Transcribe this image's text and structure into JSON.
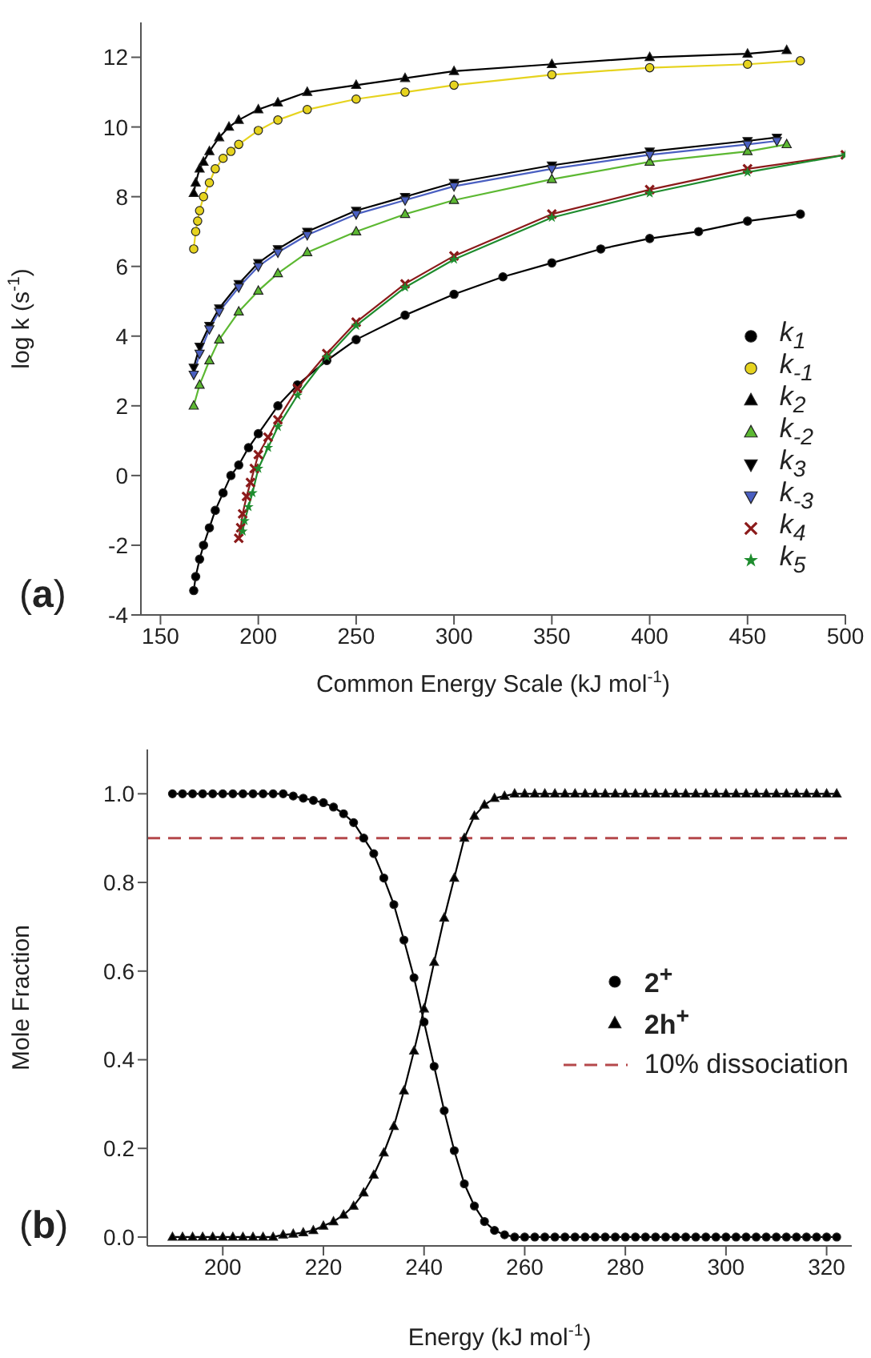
{
  "chart_data": [
    {
      "type": "line",
      "xlabel": "Common Energy Scale (kJ mol$^{-1}$)",
      "ylabel": "log k (s$^{-1}$)",
      "annotations": [
        "(a)"
      ],
      "xlim": [
        140,
        500
      ],
      "xticks": [
        150,
        200,
        250,
        300,
        350,
        400,
        450,
        500
      ],
      "ylim": [
        -4,
        13
      ],
      "yticks": [
        -4,
        -2,
        0,
        2,
        4,
        6,
        8,
        10,
        12
      ],
      "legend": "bottom right",
      "series": [
        {
          "name": "k$_{1}$",
          "color": "#000000",
          "marker": "circle",
          "x": [
            167,
            168,
            170,
            172,
            175,
            178,
            182,
            186,
            190,
            195,
            200,
            210,
            220,
            235,
            250,
            275,
            300,
            325,
            350,
            375,
            400,
            425,
            450,
            477
          ],
          "values": [
            -3.3,
            -2.9,
            -2.4,
            -2.0,
            -1.5,
            -1.0,
            -0.5,
            0.0,
            0.3,
            0.8,
            1.2,
            2.0,
            2.6,
            3.3,
            3.9,
            4.6,
            5.2,
            5.7,
            6.1,
            6.5,
            6.8,
            7.0,
            7.3,
            7.5
          ]
        },
        {
          "name": "k$_{-1}$",
          "color": "#e6d31e",
          "marker": "circle",
          "x": [
            167,
            168,
            169,
            170,
            172,
            175,
            178,
            182,
            186,
            190,
            200,
            210,
            225,
            250,
            275,
            300,
            350,
            400,
            450,
            477
          ],
          "values": [
            6.5,
            7.0,
            7.3,
            7.6,
            8.0,
            8.4,
            8.8,
            9.1,
            9.3,
            9.5,
            9.9,
            10.2,
            10.5,
            10.8,
            11.0,
            11.2,
            11.5,
            11.7,
            11.8,
            11.9
          ]
        },
        {
          "name": "k$_{2}$",
          "color": "#000000",
          "marker": "triangle",
          "x": [
            167,
            168,
            170,
            172,
            175,
            180,
            185,
            190,
            200,
            210,
            225,
            250,
            275,
            300,
            350,
            400,
            450,
            470
          ],
          "values": [
            8.1,
            8.4,
            8.8,
            9.0,
            9.3,
            9.7,
            10.0,
            10.2,
            10.5,
            10.7,
            11.0,
            11.2,
            11.4,
            11.6,
            11.8,
            12.0,
            12.1,
            12.2
          ]
        },
        {
          "name": "k$_{-2}$",
          "color": "#5cb832",
          "marker": "triangle",
          "x": [
            167,
            170,
            175,
            180,
            190,
            200,
            210,
            225,
            250,
            275,
            300,
            350,
            400,
            450,
            470
          ],
          "values": [
            2.0,
            2.6,
            3.3,
            3.9,
            4.7,
            5.3,
            5.8,
            6.4,
            7.0,
            7.5,
            7.9,
            8.5,
            9.0,
            9.3,
            9.5
          ]
        },
        {
          "name": "k$_{3}$",
          "color": "#000000",
          "marker": "triangle-down",
          "x": [
            167,
            170,
            175,
            180,
            190,
            200,
            210,
            225,
            250,
            275,
            300,
            350,
            400,
            450,
            465
          ],
          "values": [
            3.1,
            3.7,
            4.3,
            4.8,
            5.5,
            6.1,
            6.5,
            7.0,
            7.6,
            8.0,
            8.4,
            8.9,
            9.3,
            9.6,
            9.7
          ]
        },
        {
          "name": "k$_{-3}$",
          "color": "#4a5fc1",
          "marker": "triangle-down",
          "x": [
            167,
            170,
            175,
            180,
            190,
            200,
            210,
            225,
            250,
            275,
            300,
            350,
            400,
            450,
            465
          ],
          "values": [
            2.9,
            3.5,
            4.2,
            4.7,
            5.4,
            6.0,
            6.4,
            6.9,
            7.5,
            7.9,
            8.3,
            8.8,
            9.2,
            9.5,
            9.6
          ]
        },
        {
          "name": "k$_{4}$",
          "color": "#8b1a1a",
          "marker": "cross",
          "x": [
            190,
            191,
            192,
            194,
            196,
            198,
            200,
            205,
            210,
            220,
            235,
            250,
            275,
            300,
            350,
            400,
            450,
            500
          ],
          "values": [
            -1.8,
            -1.5,
            -1.1,
            -0.6,
            -0.2,
            0.2,
            0.6,
            1.1,
            1.6,
            2.5,
            3.5,
            4.4,
            5.5,
            6.3,
            7.5,
            8.2,
            8.8,
            9.2
          ]
        },
        {
          "name": "k$_{5}$",
          "color": "#1e8c2e",
          "marker": "star",
          "x": [
            192,
            193,
            195,
            197,
            200,
            205,
            210,
            220,
            235,
            250,
            275,
            300,
            350,
            400,
            450,
            500
          ],
          "values": [
            -1.6,
            -1.3,
            -0.9,
            -0.5,
            0.2,
            0.8,
            1.4,
            2.3,
            3.4,
            4.3,
            5.4,
            6.2,
            7.4,
            8.1,
            8.7,
            9.2
          ]
        }
      ]
    },
    {
      "type": "line",
      "xlabel": "Energy (kJ mol$^{-1}$)",
      "ylabel": "Mole Fraction",
      "annotations": [
        "(b)"
      ],
      "xlim": [
        185,
        325
      ],
      "xticks": [
        200,
        220,
        240,
        260,
        280,
        300,
        320
      ],
      "ylim": [
        -0.02,
        1.1
      ],
      "yticks": [
        {
          "value": 0,
          "label": "0.0"
        },
        {
          "value": 0.2,
          "label": "0.2"
        },
        {
          "value": 0.4,
          "label": "0.4"
        },
        {
          "value": 0.6,
          "label": "0.6"
        },
        {
          "value": 0.8,
          "label": "0.8"
        },
        {
          "value": 1,
          "label": "1.0"
        }
      ],
      "legend": "right",
      "x": [
        190,
        192,
        194,
        196,
        198,
        200,
        202,
        204,
        206,
        208,
        210,
        212,
        214,
        216,
        218,
        220,
        222,
        224,
        226,
        228,
        230,
        232,
        234,
        236,
        238,
        240,
        242,
        244,
        246,
        248,
        250,
        252,
        254,
        256,
        258,
        260,
        262,
        264,
        266,
        268,
        270,
        272,
        274,
        276,
        278,
        280,
        282,
        284,
        286,
        288,
        290,
        292,
        294,
        296,
        298,
        300,
        302,
        304,
        306,
        308,
        310,
        312,
        314,
        316,
        318,
        320,
        322
      ],
      "ref_lines": [
        {
          "axis": "y",
          "value": 0.9,
          "label": "10% dissociation",
          "color": "#b5484b",
          "line_style": "dashed"
        }
      ],
      "series": [
        {
          "name": "2$^{+}$",
          "color": "#000000",
          "marker": "circle",
          "values": [
            1,
            1,
            1,
            1,
            1,
            1,
            1,
            1,
            1,
            1,
            1,
            1,
            0.995,
            0.99,
            0.985,
            0.98,
            0.97,
            0.955,
            0.935,
            0.9,
            0.865,
            0.81,
            0.75,
            0.67,
            0.585,
            0.485,
            0.385,
            0.285,
            0.195,
            0.12,
            0.07,
            0.035,
            0.015,
            0.005,
            0,
            0,
            0,
            0,
            0,
            0,
            0,
            0,
            0,
            0,
            0,
            0,
            0,
            0,
            0,
            0,
            0,
            0,
            0,
            0,
            0,
            0,
            0,
            0,
            0,
            0,
            0,
            0,
            0,
            0,
            0,
            0,
            0
          ]
        },
        {
          "name": "2h$^{+}$",
          "color": "#000000",
          "marker": "triangle",
          "values": [
            0,
            0,
            0,
            0,
            0,
            0,
            0,
            0,
            0,
            0,
            0,
            0.005,
            0.007,
            0.01,
            0.015,
            0.025,
            0.035,
            0.05,
            0.07,
            0.1,
            0.14,
            0.19,
            0.25,
            0.33,
            0.42,
            0.515,
            0.62,
            0.72,
            0.81,
            0.9,
            0.95,
            0.975,
            0.99,
            0.995,
            1,
            1,
            1,
            1,
            1,
            1,
            1,
            1,
            1,
            1,
            1,
            1,
            1,
            1,
            1,
            1,
            1,
            1,
            1,
            1,
            1,
            1,
            1,
            1,
            1,
            1,
            1,
            1,
            1,
            1,
            1,
            1,
            1
          ]
        }
      ]
    }
  ]
}
